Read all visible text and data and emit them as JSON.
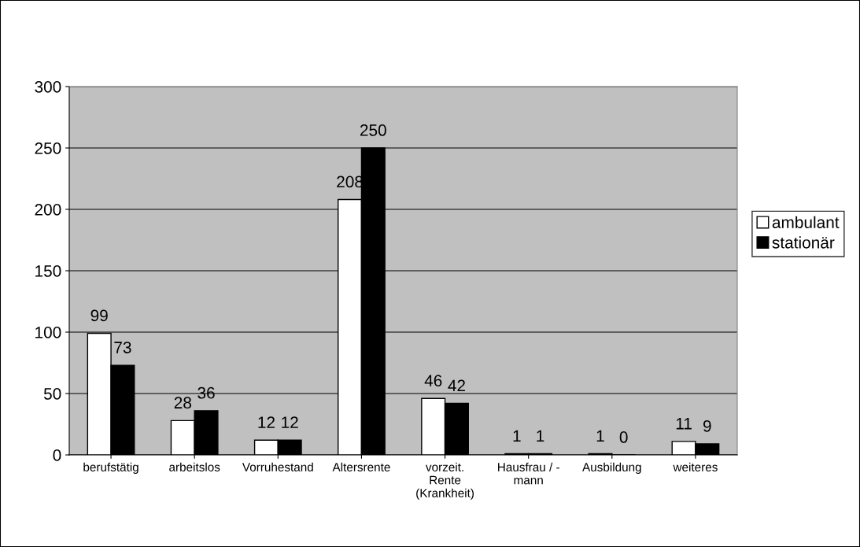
{
  "chart_data": {
    "type": "bar",
    "categories": [
      "berufstätig",
      "arbeitslos",
      "Vorruhestand",
      "Altersrente",
      "vorzeit.\nRente\n(Krankheit)",
      "Hausfrau / -\nmann",
      "Ausbildung",
      "weiteres"
    ],
    "series": [
      {
        "name": "ambulant",
        "color": "#ffffff",
        "values": [
          99,
          28,
          12,
          208,
          46,
          1,
          1,
          11
        ]
      },
      {
        "name": "stationär",
        "color": "#000000",
        "values": [
          73,
          36,
          12,
          250,
          42,
          1,
          0,
          9
        ]
      }
    ],
    "ylim": [
      0,
      300
    ],
    "yticks": [
      0,
      50,
      100,
      150,
      200,
      250,
      300
    ],
    "grid": "y",
    "legend": "right",
    "data_labels": true
  }
}
